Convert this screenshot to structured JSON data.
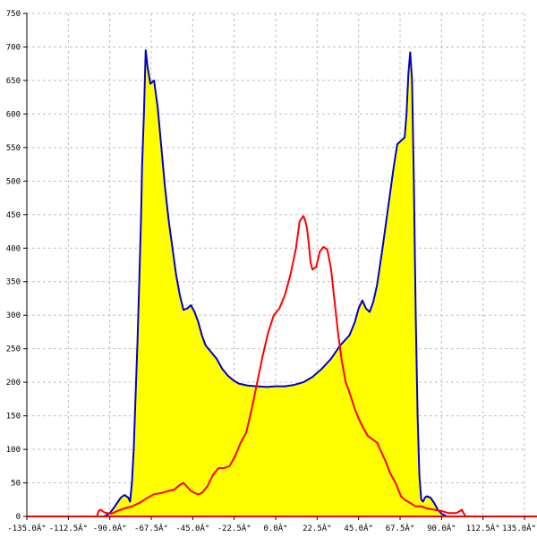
{
  "chart_data": {
    "type": "area",
    "title": "",
    "xlabel": "",
    "ylabel": "",
    "xlim": [
      -135,
      135
    ],
    "ylim": [
      0,
      750
    ],
    "grid": true,
    "x_ticks": [
      -135,
      -112.5,
      -90,
      -67.5,
      -45,
      -22.5,
      0,
      22.5,
      45,
      67.5,
      90,
      112.5,
      135
    ],
    "x_tick_labels": [
      "-135.0Â°",
      "-112.5Â°",
      "-90.0Â°",
      "-67.5Â°",
      "-45.0Â°",
      "-22.5Â°",
      "0.0Â°",
      "22.5Â°",
      "45.0Â°",
      "67.5Â°",
      "90.0Â°",
      "112.5Â°",
      "135.0Â°"
    ],
    "y_ticks": [
      0,
      50,
      100,
      150,
      200,
      250,
      300,
      350,
      400,
      450,
      500,
      550,
      600,
      650,
      700,
      750
    ],
    "y_tick_labels": [
      "0",
      "50",
      "100",
      "150",
      "200",
      "250",
      "300",
      "350",
      "400",
      "450",
      "500",
      "550",
      "600",
      "650",
      "700",
      "750"
    ],
    "series": [
      {
        "color": "#0000cc",
        "fill": "#ffff00",
        "x": [
          -93,
          -90,
          -88,
          -86,
          -84,
          -82,
          -80,
          -79,
          -78,
          -77,
          -76,
          -75,
          -74,
          -73,
          -72.5,
          -71.5,
          -70.5,
          -69.5,
          -68,
          -66,
          -64,
          -62,
          -60,
          -58,
          -56,
          -54,
          -52,
          -50,
          -48,
          -46,
          -44,
          -42,
          -40,
          -38,
          -35,
          -32,
          -29,
          -26,
          -23,
          -20,
          -15,
          -10,
          -5,
          0,
          5,
          10,
          15,
          20,
          25,
          30,
          35,
          40,
          43,
          45,
          47,
          49,
          51,
          53,
          55,
          58,
          61,
          64,
          66,
          68,
          70,
          71,
          72,
          73,
          74,
          75,
          76,
          77,
          78,
          79,
          80,
          81,
          82,
          84,
          86,
          88,
          90,
          93,
          96,
          100,
          102
        ],
        "y": [
          0,
          5,
          12,
          20,
          28,
          32,
          28,
          22,
          50,
          100,
          180,
          260,
          350,
          450,
          520,
          600,
          695,
          670,
          645,
          650,
          610,
          550,
          490,
          440,
          400,
          360,
          330,
          308,
          310,
          315,
          305,
          290,
          270,
          255,
          245,
          235,
          220,
          210,
          203,
          198,
          195,
          194,
          193,
          194,
          194,
          196,
          200,
          208,
          220,
          235,
          255,
          270,
          290,
          310,
          322,
          310,
          305,
          320,
          345,
          400,
          460,
          520,
          555,
          560,
          565,
          600,
          660,
          692,
          650,
          500,
          300,
          150,
          60,
          25,
          22,
          28,
          30,
          28,
          20,
          10,
          4,
          0,
          0,
          0,
          0
        ]
      },
      {
        "color": "#ff0000",
        "x": [
          -97,
          -96,
          -95,
          -93,
          -91,
          -89,
          -86,
          -82,
          -78,
          -74,
          -70,
          -66,
          -62,
          -58,
          -55,
          -52,
          -50,
          -48,
          -46,
          -44,
          -42,
          -40,
          -37,
          -34,
          -31,
          -28,
          -25,
          -22,
          -19,
          -16,
          -13,
          -10,
          -7,
          -4,
          -1,
          2,
          5,
          8,
          11,
          13,
          15,
          16,
          17,
          18,
          19,
          20,
          22,
          24,
          26,
          28,
          30,
          32,
          34,
          36,
          38,
          40,
          43,
          46,
          50,
          55,
          60,
          62,
          65,
          68,
          70,
          73,
          76,
          79,
          82,
          86,
          90,
          94,
          98,
          100,
          101,
          102,
          103
        ],
        "y": [
          0,
          8,
          10,
          6,
          5,
          4,
          8,
          12,
          15,
          20,
          27,
          33,
          35,
          38,
          40,
          47,
          50,
          44,
          38,
          35,
          33,
          35,
          45,
          62,
          72,
          72,
          75,
          90,
          110,
          125,
          160,
          200,
          240,
          275,
          300,
          310,
          330,
          360,
          400,
          440,
          448,
          442,
          430,
          405,
          378,
          368,
          372,
          395,
          402,
          398,
          370,
          320,
          270,
          230,
          200,
          185,
          160,
          140,
          120,
          110,
          80,
          65,
          50,
          30,
          25,
          20,
          15,
          15,
          12,
          10,
          8,
          5,
          5,
          8,
          10,
          5,
          0
        ]
      }
    ]
  }
}
